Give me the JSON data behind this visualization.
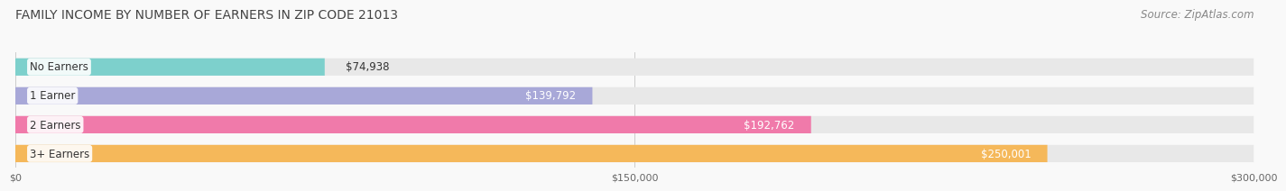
{
  "title": "FAMILY INCOME BY NUMBER OF EARNERS IN ZIP CODE 21013",
  "source": "Source: ZipAtlas.com",
  "categories": [
    "No Earners",
    "1 Earner",
    "2 Earners",
    "3+ Earners"
  ],
  "values": [
    74938,
    139792,
    192762,
    250001
  ],
  "bar_colors": [
    "#7dd0cc",
    "#a8a8d8",
    "#f07aaa",
    "#f5b85a"
  ],
  "bar_bg_color": "#e8e8e8",
  "xlim": [
    0,
    300000
  ],
  "xticks": [
    0,
    150000,
    300000
  ],
  "xtick_labels": [
    "$0",
    "$150,000",
    "$300,000"
  ],
  "title_fontsize": 10,
  "source_fontsize": 8.5,
  "label_fontsize": 8.5,
  "value_fontsize": 8.5,
  "background_color": "#f9f9f9",
  "bar_height": 0.58
}
